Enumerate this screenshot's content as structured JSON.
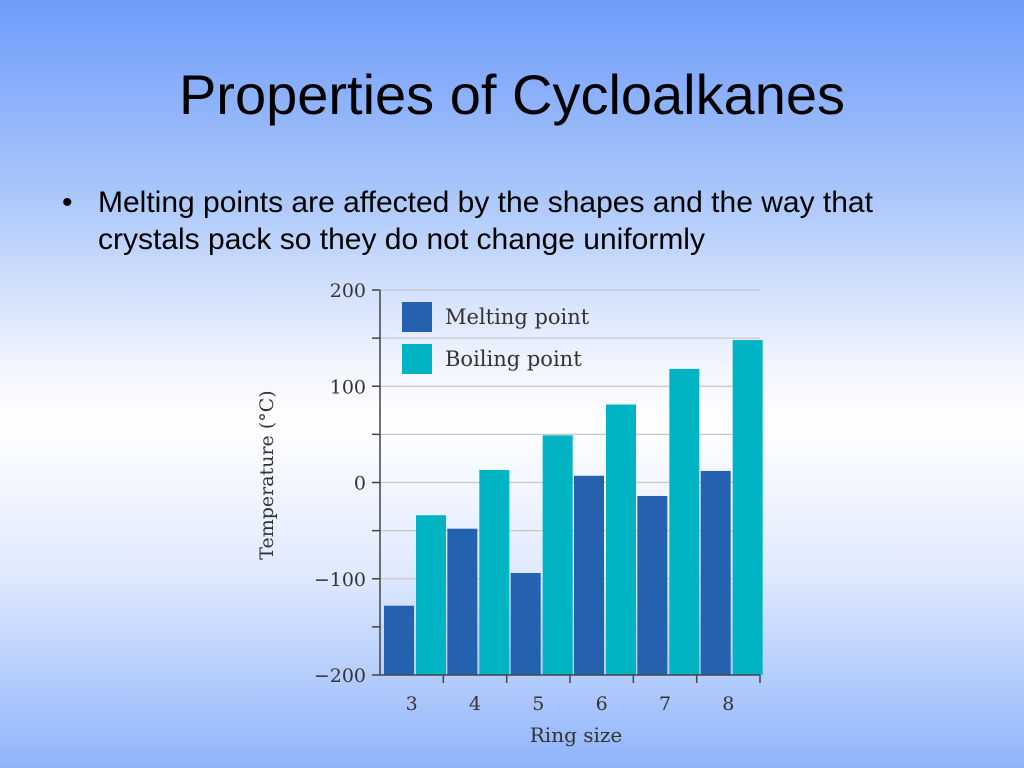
{
  "slide": {
    "title": "Properties of Cycloalkanes",
    "bullets": [
      {
        "marker": "•",
        "text": "Melting points are affected by the shapes and the way that crystals pack so they do not change uniformly"
      }
    ]
  },
  "chart_data": {
    "type": "bar",
    "title": "",
    "xlabel": "Ring size",
    "ylabel": "Temperature (°C)",
    "categories": [
      "3",
      "4",
      "5",
      "6",
      "7",
      "8"
    ],
    "ylim": [
      -200,
      200
    ],
    "yticks": [
      200,
      100,
      0,
      -100,
      -200
    ],
    "ytick_labels": [
      "200",
      "100",
      "0",
      "−100",
      "−200"
    ],
    "grid": true,
    "legend_position": "top-left",
    "series": [
      {
        "name": "Melting point",
        "color": "#2462b0",
        "values": [
          -128,
          -48,
          -94,
          7,
          -14,
          12
        ]
      },
      {
        "name": "Boiling point",
        "color": "#00b4c4",
        "values": [
          -34,
          13,
          49,
          81,
          118,
          148
        ]
      }
    ]
  }
}
